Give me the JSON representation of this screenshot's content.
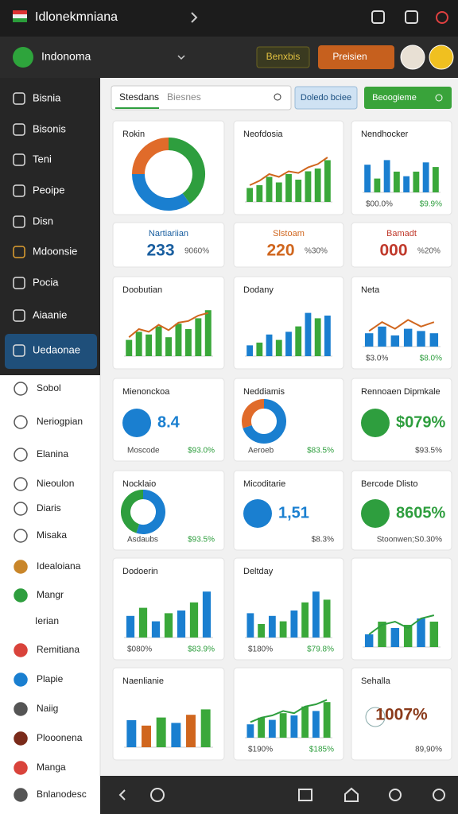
{
  "header": {
    "title": "Idlonekmniana",
    "workspace": "Indonoma",
    "button_secondary": "Benxbis",
    "button_primary": "Preisien"
  },
  "toolbar": {
    "tabs": [
      "Stesdans",
      "Biesnes"
    ],
    "button_info": "Doledo bciee",
    "button_action": "Beoogieme"
  },
  "sidebar": {
    "dark_items": [
      "Bisnia",
      "Bisonis",
      "Teni",
      "Peoipe",
      "Disn",
      "Mdoonsie",
      "Pocia",
      "Aiaanie",
      "Uedaonae"
    ],
    "light_items": [
      "Sobol",
      "Neriogpian",
      "Elanina",
      "Nieoulon",
      "Diaris",
      "Misaka",
      "Idealoiana",
      "Mangr",
      "Ierian",
      "Remitiana",
      "Plapie",
      "Naiig",
      "Plooonena",
      "Manga",
      "Bnlanodesc"
    ]
  },
  "cards": [
    {
      "kind": "donut",
      "title": "Rokin",
      "values": [
        40,
        35,
        25
      ],
      "colors": [
        "#2e9e3e",
        "#1a7fd0",
        "#e06b2a"
      ]
    },
    {
      "kind": "bars",
      "title": "Neofdosia",
      "values": [
        25,
        30,
        45,
        35,
        50,
        40,
        55,
        60,
        75
      ],
      "colors": [
        "#3aa83a"
      ],
      "line": [
        30,
        38,
        50,
        45,
        55,
        52,
        62,
        68,
        80
      ]
    },
    {
      "kind": "bars",
      "title": "Nendhocker",
      "values": [
        60,
        30,
        70,
        45,
        35,
        45,
        65,
        55
      ],
      "colors": [
        "#1a7fd0",
        "#3aa83a"
      ],
      "stats": [
        "$00.0%",
        "$9.9%"
      ]
    },
    {
      "kind": "stat",
      "title": "Nartiariian",
      "big": "233",
      "small": "9060%",
      "accent": "#1a5fa0"
    },
    {
      "kind": "stat",
      "title": "Slstoam",
      "big": "220",
      "small": "%30%",
      "accent": "#d0661e"
    },
    {
      "kind": "stat",
      "title": "Bamadt",
      "big": "000",
      "small": "%20%",
      "accent": "#c0392b"
    },
    {
      "kind": "bars",
      "title": "Doobutian",
      "values": [
        30,
        45,
        40,
        55,
        35,
        60,
        50,
        70,
        85
      ],
      "colors": [
        "#3aa83a"
      ],
      "line": [
        35,
        50,
        45,
        58,
        48,
        62,
        65,
        75,
        80
      ]
    },
    {
      "kind": "bars",
      "title": "Dodany",
      "values": [
        20,
        25,
        40,
        30,
        45,
        55,
        80,
        70,
        75
      ],
      "colors": [
        "#1a7fd0",
        "#3aa83a"
      ]
    },
    {
      "kind": "bars",
      "title": "Neta",
      "values": [
        30,
        45,
        25,
        40,
        35,
        30
      ],
      "colors": [
        "#1a7fd0"
      ],
      "line": [
        35,
        55,
        40,
        60,
        45,
        55
      ],
      "stats": [
        "$3.0%",
        "$8.0%"
      ]
    },
    {
      "kind": "circle",
      "title": "Mienonckoa",
      "big": "8.4",
      "stats": [
        "Moscode",
        "$93.0%"
      ],
      "accent": "#1a7fd0"
    },
    {
      "kind": "donut",
      "title": "Neddiamis",
      "values": [
        70,
        30
      ],
      "colors": [
        "#1a7fd0",
        "#e06b2a"
      ],
      "stats": [
        "Aeroeb",
        "$83.5%"
      ]
    },
    {
      "kind": "circle",
      "title": "Rennoaen Dipmkale",
      "big": "$079%",
      "stats": [
        "$93.5%"
      ],
      "accent": "#2e9e3e"
    },
    {
      "kind": "donut",
      "title": "Nocklaio",
      "values": [
        55,
        45
      ],
      "colors": [
        "#1a7fd0",
        "#2e9e3e"
      ],
      "stats": [
        "Asdaubs",
        "$93.5%"
      ]
    },
    {
      "kind": "circle",
      "title": "Micoditarie",
      "big": "1,51",
      "stats": [
        "$8.3%"
      ],
      "accent": "#1a7fd0"
    },
    {
      "kind": "circle",
      "title": "Bercode Dlisto",
      "big": "8605%",
      "stats": [
        "Stoonwen;S0.30%"
      ],
      "accent": "#2e9e3e"
    },
    {
      "kind": "bars",
      "title": "Dodoerin",
      "values": [
        40,
        55,
        30,
        45,
        50,
        65,
        85
      ],
      "colors": [
        "#1a7fd0",
        "#3aa83a"
      ],
      "stats": [
        "$080%",
        "$83.9%"
      ]
    },
    {
      "kind": "bars",
      "title": "Deltday",
      "values": [
        45,
        25,
        40,
        30,
        50,
        65,
        85,
        70
      ],
      "colors": [
        "#1a7fd0",
        "#3aa83a"
      ],
      "stats": [
        "$180%",
        "$79.8%"
      ]
    },
    {
      "kind": "bars",
      "values": [
        20,
        40,
        30,
        35,
        45,
        40
      ],
      "colors": [
        "#1a7fd0",
        "#3aa83a"
      ],
      "line": [
        20,
        35,
        40,
        30,
        45,
        50
      ]
    },
    {
      "kind": "bars",
      "title": "Naenlianie",
      "values": [
        50,
        40,
        55,
        45,
        60,
        70
      ],
      "colors": [
        "#1a7fd0",
        "#d0661e",
        "#3aa83a"
      ]
    },
    {
      "kind": "bars",
      "values": [
        30,
        45,
        40,
        55,
        50,
        70,
        60,
        80
      ],
      "colors": [
        "#1a7fd0",
        "#3aa83a"
      ],
      "line": [
        35,
        45,
        50,
        60,
        55,
        70,
        75,
        85
      ],
      "stats": [
        "$190%",
        "$185%"
      ]
    },
    {
      "kind": "circle",
      "title": "Sehalla",
      "big": "1007%",
      "stats": [
        "89,90%"
      ],
      "accent": "#8a3a1a"
    }
  ]
}
